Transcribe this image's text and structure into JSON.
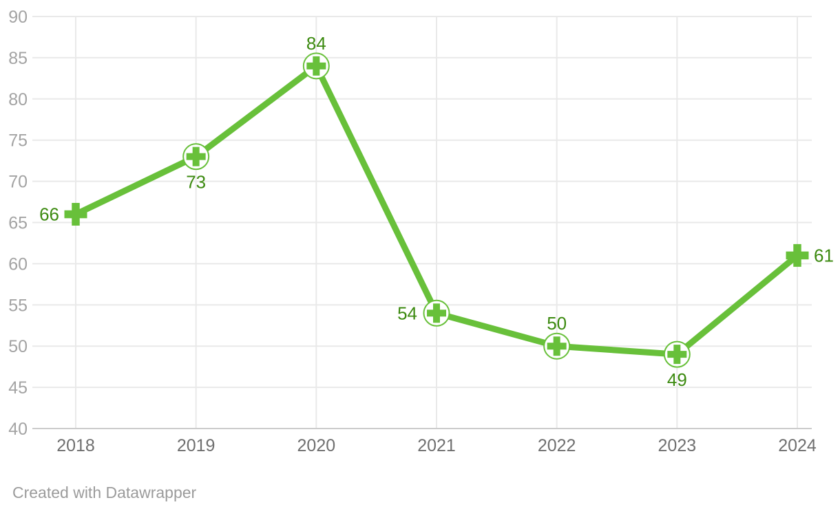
{
  "chart_data": {
    "type": "line",
    "title": "",
    "xlabel": "",
    "ylabel": "",
    "categories": [
      "2018",
      "2019",
      "2020",
      "2021",
      "2022",
      "2023",
      "2024"
    ],
    "series": [
      {
        "name": "value",
        "values": [
          66,
          73,
          84,
          54,
          50,
          49,
          61
        ]
      }
    ],
    "point_labels": [
      "66",
      "73",
      "84",
      "54",
      "50",
      "49",
      "61"
    ],
    "point_label_positions": [
      "left",
      "below",
      "above",
      "left",
      "above",
      "below",
      "right"
    ],
    "marker": "cross",
    "circled_points": [
      false,
      true,
      true,
      true,
      true,
      true,
      false
    ],
    "ylim": [
      40,
      90
    ],
    "yticks": [
      40,
      45,
      50,
      55,
      60,
      65,
      70,
      75,
      80,
      85,
      90
    ],
    "grid": "both",
    "legend_position": "none"
  },
  "colors": {
    "background": "#ffffff",
    "line": "#68c03a",
    "marker_fill": "#68c03a",
    "marker_circle_fill": "#ffffff",
    "value_label": "#3c8a10",
    "grid": "#e9e9e9",
    "axis_baseline": "#cccccc",
    "y_tick_label": "#a3a3a3",
    "x_tick_label": "#6f6f6f",
    "footer_text": "#9b9b9b"
  },
  "footer": {
    "credit": "Created with Datawrapper"
  }
}
